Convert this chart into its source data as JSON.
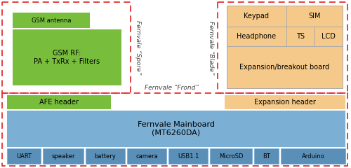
{
  "fig_width": 5.0,
  "fig_height": 2.4,
  "dpi": 100,
  "bg_color": "#ffffff",
  "colors": {
    "green": "#78be3c",
    "orange": "#f5c98a",
    "blue": "#7bafd4",
    "blue_dark": "#5a8fb8",
    "red_dashed": "#e53030",
    "white": "#ffffff",
    "gray_line": "#aaaaaa"
  },
  "spore_label": "Fernvale “Spore”",
  "blade_label": "Fernvale “Blade”",
  "frond_label": "Fernvale “Frond”"
}
